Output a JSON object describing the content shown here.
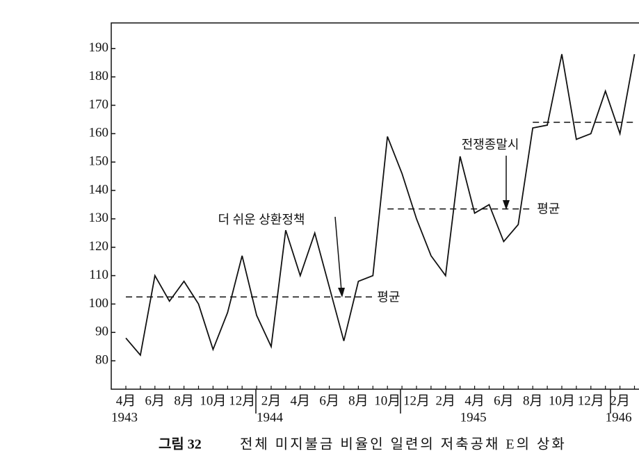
{
  "chart_data": {
    "type": "line",
    "categories": [
      "4月",
      null,
      "6月",
      null,
      "8月",
      null,
      "10月",
      null,
      "12月",
      null,
      "2月",
      null,
      "4月",
      null,
      "6月",
      null,
      "8月",
      null,
      "10月",
      null,
      "12月",
      null,
      "2月",
      null,
      "4月",
      null,
      "6月",
      null,
      "8月",
      null,
      "10月",
      null,
      "12月",
      null,
      "2月",
      null
    ],
    "year_labels": [
      "1943",
      null,
      null,
      null,
      null,
      null,
      null,
      null,
      null,
      null,
      "1944",
      null,
      null,
      null,
      null,
      null,
      null,
      null,
      null,
      null,
      null,
      null,
      null,
      null,
      "1945",
      null,
      null,
      null,
      null,
      null,
      null,
      null,
      null,
      null,
      "1946",
      null
    ],
    "series": [
      {
        "color": "#111111",
        "values": [
          88,
          82,
          110,
          101,
          108,
          100,
          84,
          97,
          117,
          96,
          85,
          126,
          110,
          125,
          106,
          87,
          108,
          110,
          159,
          146,
          130,
          117,
          110,
          152,
          132,
          135,
          122,
          128,
          162,
          163,
          188,
          158,
          160,
          175,
          160,
          188
        ]
      }
    ],
    "reference_lines": [
      {
        "value": 102.5,
        "label": "평균",
        "range": [
          0,
          17
        ]
      },
      {
        "value": 133.5,
        "label": "평균",
        "range": [
          18,
          28
        ]
      },
      {
        "value": 164,
        "label": null,
        "range": [
          28,
          35
        ]
      }
    ],
    "annotations": [
      {
        "text": "더 쉬운 상환정책"
      },
      {
        "text": "전쟁종말시"
      }
    ],
    "caption": {
      "figure": "그림 32",
      "text": "전체 미지불금 비율인 일련의 저축공채 E의 상화"
    },
    "ylim": [
      70,
      199
    ],
    "yticks": [
      80,
      90,
      100,
      110,
      120,
      130,
      140,
      150,
      160,
      170,
      180,
      190
    ]
  }
}
